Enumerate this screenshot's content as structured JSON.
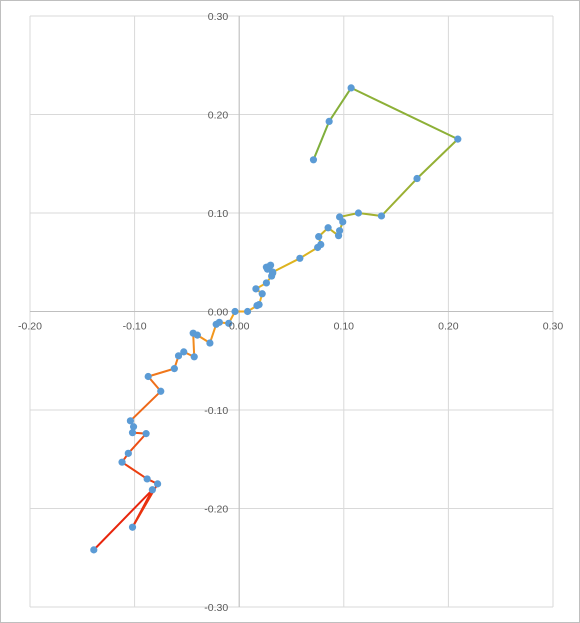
{
  "chart_data": {
    "type": "scatter",
    "title": "",
    "xlabel": "",
    "ylabel": "",
    "xlim": [
      -0.2,
      0.3
    ],
    "ylim": [
      -0.3,
      0.3
    ],
    "grid": true,
    "legend": "none",
    "xticks": [
      "-0.20",
      "-0.10",
      "0.00",
      "0.10",
      "0.20",
      "0.30"
    ],
    "yticks": [
      "0.30",
      "0.20",
      "0.10",
      "0.00",
      "-0.10",
      "-0.20",
      "-0.30"
    ],
    "colors": {
      "marker": "#5B9BD5",
      "gradient": [
        "#E8250C",
        "#F07C1C",
        "#F5B11F",
        "#D8B31F",
        "#7FAF3C"
      ],
      "grid": "#d9d9d9",
      "axis": "#bfbfbf"
    },
    "points": [
      [
        -0.139,
        -0.242
      ],
      [
        -0.083,
        -0.181
      ],
      [
        -0.102,
        -0.219
      ],
      [
        -0.078,
        -0.175
      ],
      [
        -0.088,
        -0.17
      ],
      [
        -0.112,
        -0.153
      ],
      [
        -0.106,
        -0.144
      ],
      [
        -0.089,
        -0.124
      ],
      [
        -0.102,
        -0.123
      ],
      [
        -0.101,
        -0.117
      ],
      [
        -0.104,
        -0.111
      ],
      [
        -0.075,
        -0.081
      ],
      [
        -0.087,
        -0.066
      ],
      [
        -0.062,
        -0.058
      ],
      [
        -0.058,
        -0.045
      ],
      [
        -0.053,
        -0.041
      ],
      [
        -0.043,
        -0.046
      ],
      [
        -0.044,
        -0.022
      ],
      [
        -0.04,
        -0.024
      ],
      [
        -0.028,
        -0.032
      ],
      [
        -0.022,
        -0.013
      ],
      [
        -0.019,
        -0.011
      ],
      [
        -0.01,
        -0.012
      ],
      [
        -0.004,
        0.0
      ],
      [
        0.008,
        0.0
      ],
      [
        0.017,
        0.006
      ],
      [
        0.019,
        0.007
      ],
      [
        0.022,
        0.018
      ],
      [
        0.016,
        0.023
      ],
      [
        0.026,
        0.029
      ],
      [
        0.031,
        0.036
      ],
      [
        0.032,
        0.039
      ],
      [
        0.027,
        0.043
      ],
      [
        0.029,
        0.046
      ],
      [
        0.026,
        0.045
      ],
      [
        0.03,
        0.047
      ],
      [
        0.032,
        0.04
      ],
      [
        0.058,
        0.054
      ],
      [
        0.075,
        0.065
      ],
      [
        0.078,
        0.068
      ],
      [
        0.076,
        0.076
      ],
      [
        0.085,
        0.085
      ],
      [
        0.095,
        0.077
      ],
      [
        0.096,
        0.082
      ],
      [
        0.099,
        0.091
      ],
      [
        0.096,
        0.096
      ],
      [
        0.114,
        0.1
      ],
      [
        0.136,
        0.097
      ],
      [
        0.17,
        0.135
      ],
      [
        0.209,
        0.175
      ],
      [
        0.107,
        0.227
      ],
      [
        0.086,
        0.193
      ],
      [
        0.071,
        0.154
      ]
    ]
  }
}
